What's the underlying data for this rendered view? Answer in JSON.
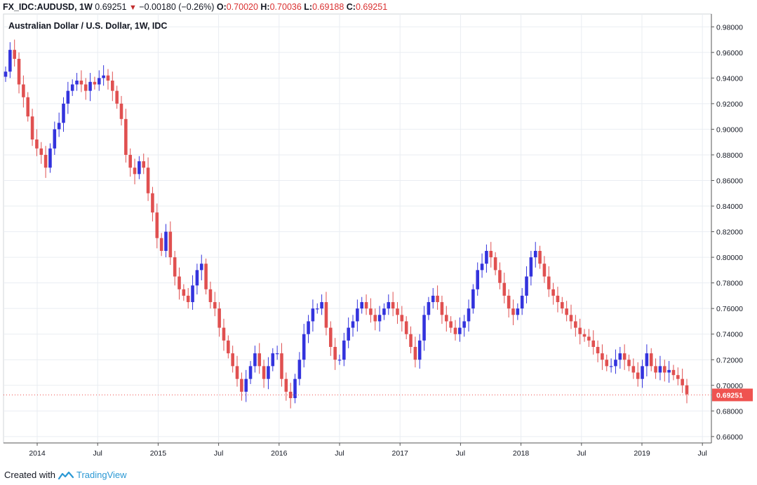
{
  "header": {
    "symbol": "FX_IDC:AUDUSD, 1W",
    "last": "0.69251",
    "change_icon": "down-triangle-icon",
    "change": "−0.00180 (−0.26%)",
    "open_label": "O:",
    "open": "0.70020",
    "high_label": "H:",
    "high": "0.70036",
    "low_label": "L:",
    "low": "0.69188",
    "close_label": "C:",
    "close": "0.69251"
  },
  "title": "Australian Dollar / U.S. Dollar, 1W, IDC",
  "footer": {
    "created_with": "Created with",
    "brand": "TradingView",
    "brand_icon": "tradingview-logo-icon"
  },
  "colors": {
    "up": "#3333dd",
    "down": "#e05050",
    "last_price_tag": "#ef5350",
    "grid": "#e9edf2",
    "axis": "#555555"
  },
  "chart_data": {
    "type": "candlestick",
    "title": "Australian Dollar / U.S. Dollar, 1W, IDC",
    "xlabel": "",
    "ylabel": "",
    "ylim": [
      0.655,
      0.99
    ],
    "y_ticks": [
      "0.98000",
      "0.96000",
      "0.94000",
      "0.92000",
      "0.90000",
      "0.88000",
      "0.86000",
      "0.84000",
      "0.82000",
      "0.80000",
      "0.78000",
      "0.76000",
      "0.74000",
      "0.72000",
      "0.70000",
      "0.68000",
      "0.66000"
    ],
    "x_ticks": [
      "2014",
      "Jul",
      "2015",
      "Jul",
      "2016",
      "Jul",
      "2017",
      "Jul",
      "2018",
      "Jul",
      "2019",
      "Jul"
    ],
    "x_range": [
      "2013-10",
      "2019-08"
    ],
    "last_price": "0.69251",
    "grid": true,
    "series": [
      {
        "values": [
          0.945,
          0.962,
          0.955,
          0.935,
          0.925,
          0.91,
          0.892,
          0.885,
          0.88,
          0.87,
          0.885,
          0.9,
          0.905,
          0.92,
          0.93,
          0.935,
          0.938,
          0.935,
          0.93,
          0.937,
          0.935,
          0.94,
          0.942,
          0.938,
          0.93,
          0.92,
          0.908,
          0.88,
          0.87,
          0.865,
          0.875,
          0.87,
          0.85,
          0.835,
          0.815,
          0.805,
          0.82,
          0.8,
          0.785,
          0.775,
          0.77,
          0.765,
          0.778,
          0.79,
          0.795,
          0.775,
          0.765,
          0.76,
          0.745,
          0.735,
          0.725,
          0.715,
          0.705,
          0.695,
          0.705,
          0.715,
          0.725,
          0.715,
          0.705,
          0.715,
          0.725,
          0.725,
          0.705,
          0.695,
          0.69,
          0.705,
          0.72,
          0.74,
          0.75,
          0.76,
          0.76,
          0.765,
          0.745,
          0.73,
          0.72,
          0.72,
          0.735,
          0.745,
          0.75,
          0.76,
          0.765,
          0.76,
          0.755,
          0.75,
          0.755,
          0.76,
          0.765,
          0.76,
          0.755,
          0.75,
          0.74,
          0.73,
          0.72,
          0.735,
          0.755,
          0.765,
          0.77,
          0.765,
          0.755,
          0.75,
          0.745,
          0.74,
          0.745,
          0.75,
          0.76,
          0.775,
          0.79,
          0.795,
          0.805,
          0.8,
          0.79,
          0.78,
          0.77,
          0.76,
          0.755,
          0.76,
          0.77,
          0.785,
          0.8,
          0.805,
          0.795,
          0.785,
          0.775,
          0.77,
          0.765,
          0.76,
          0.755,
          0.75,
          0.745,
          0.74,
          0.738,
          0.735,
          0.73,
          0.725,
          0.72,
          0.715,
          0.715,
          0.72,
          0.725,
          0.72,
          0.715,
          0.71,
          0.705,
          0.715,
          0.725,
          0.715,
          0.71,
          0.715,
          0.71,
          0.712,
          0.708,
          0.705,
          0.7,
          0.693
        ]
      }
    ]
  }
}
